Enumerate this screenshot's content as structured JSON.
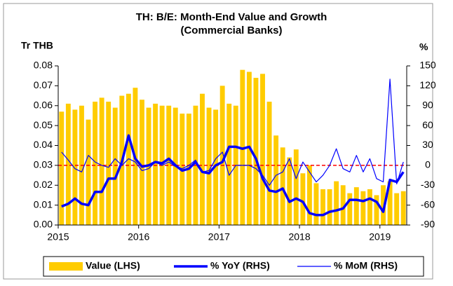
{
  "chart_data": {
    "type": "bar-line",
    "title": "TH: B/E: Month-End Value and Growth",
    "subtitle": "(Commercial Banks)",
    "y_label": "Tr THB",
    "y2_label": "%",
    "categories": [
      "2015",
      null,
      null,
      null,
      null,
      null,
      null,
      null,
      null,
      null,
      null,
      null,
      "2016",
      null,
      null,
      null,
      null,
      null,
      null,
      null,
      null,
      null,
      null,
      null,
      "2017",
      null,
      null,
      null,
      null,
      null,
      null,
      null,
      null,
      null,
      null,
      null,
      "2018",
      null,
      null,
      null,
      null,
      null,
      null,
      null,
      null,
      null,
      null,
      null,
      "2019",
      null,
      null,
      null
    ],
    "series": [
      {
        "name": "Value (LHS)",
        "type": "bar",
        "axis": "y",
        "color": "#FFCC00",
        "values": [
          0.057,
          0.061,
          0.058,
          0.06,
          0.053,
          0.062,
          0.064,
          0.062,
          0.059,
          0.065,
          0.066,
          0.069,
          0.063,
          0.059,
          0.061,
          0.06,
          0.06,
          0.059,
          0.056,
          0.056,
          0.06,
          0.066,
          0.059,
          0.058,
          0.07,
          0.061,
          0.06,
          0.078,
          0.077,
          0.074,
          0.076,
          0.062,
          0.045,
          0.039,
          0.034,
          0.038,
          0.026,
          0.03,
          0.021,
          0.018,
          0.018,
          0.022,
          0.02,
          0.016,
          0.019,
          0.017,
          0.018,
          0.015,
          0.02,
          0.022,
          0.016,
          0.017
        ]
      },
      {
        "name": "% YoY (RHS)",
        "type": "line",
        "axis": "y2",
        "color": "#0000FF",
        "width": 3.5,
        "values": [
          -62,
          -58,
          -50,
          -58,
          -60,
          -40,
          -40,
          -20,
          -20,
          5,
          45,
          10,
          -2,
          0,
          5,
          3,
          10,
          0,
          -8,
          -5,
          5,
          -10,
          -12,
          0,
          5,
          28,
          28,
          25,
          28,
          10,
          -20,
          -38,
          -40,
          -35,
          -55,
          -50,
          -55,
          -72,
          -75,
          -75,
          -70,
          -68,
          -65,
          -52,
          -52,
          -54,
          -50,
          -55,
          -70,
          -22,
          -25,
          -10
        ]
      },
      {
        "name": "% MoM (RHS)",
        "type": "line",
        "axis": "y2",
        "color": "#0000FF",
        "width": 1.2,
        "values": [
          20,
          8,
          -5,
          -10,
          15,
          5,
          0,
          -3,
          10,
          0,
          10,
          5,
          -8,
          -5,
          5,
          0,
          5,
          -2,
          -5,
          0,
          8,
          -10,
          -8,
          10,
          20,
          -15,
          0,
          0,
          0,
          -5,
          -15,
          -30,
          -15,
          -10,
          10,
          -20,
          5,
          -10,
          -25,
          -15,
          0,
          25,
          -5,
          -10,
          15,
          -10,
          10,
          -20,
          -25,
          130,
          -28,
          5
        ]
      }
    ],
    "ylim": [
      0,
      0.08
    ],
    "yticks": [
      {
        "value": 0,
        "label": "0.00"
      },
      {
        "value": 0.01,
        "label": "0.01"
      },
      {
        "value": 0.02,
        "label": "0.02"
      },
      {
        "value": 0.03,
        "label": "0.03"
      },
      {
        "value": 0.04,
        "label": "0.04"
      },
      {
        "value": 0.05,
        "label": "0.05"
      },
      {
        "value": 0.06,
        "label": "0.06"
      },
      {
        "value": 0.07,
        "label": "0.07"
      },
      {
        "value": 0.08,
        "label": "0.08"
      }
    ],
    "y2lim": [
      -90,
      150
    ],
    "y2ticks": [
      -90,
      -60,
      -30,
      0,
      30,
      60,
      90,
      120,
      150
    ],
    "reference_line": {
      "axis": "y2",
      "value": 0,
      "color": "#FF0000"
    },
    "legend": "bottom"
  }
}
